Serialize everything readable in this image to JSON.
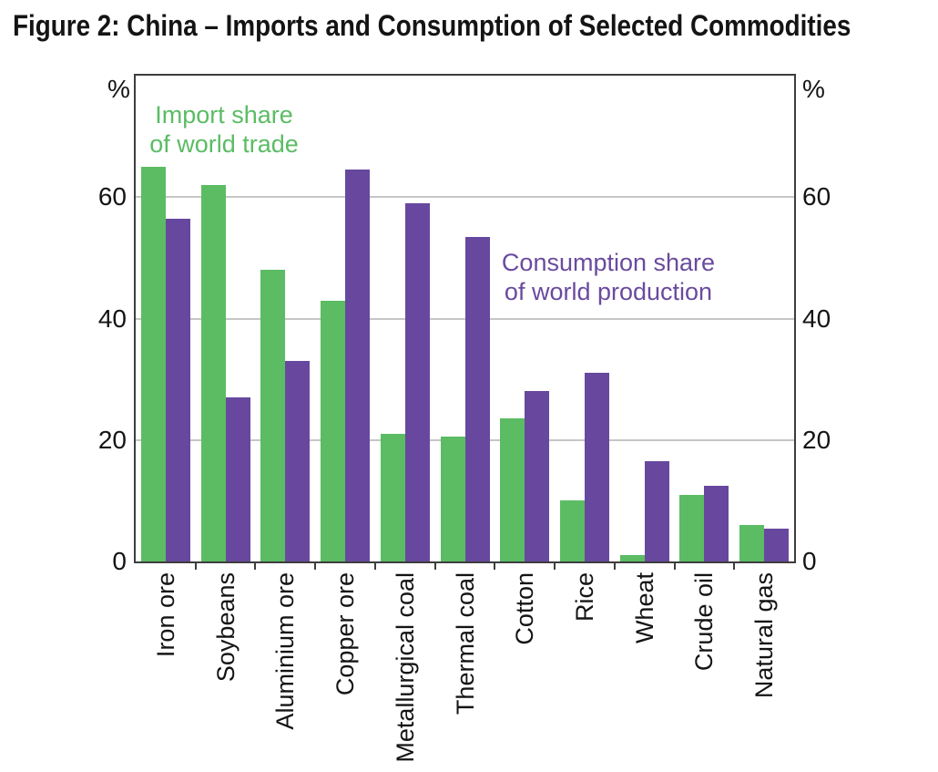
{
  "figure": {
    "title": "Figure 2: China – Imports and Consumption of Selected Commodities"
  },
  "chart_data": {
    "type": "bar",
    "title": "Figure 2: China – Imports and Consumption of Selected Commodities",
    "categories": [
      "Iron ore",
      "Soybeans",
      "Aluminium ore",
      "Copper ore",
      "Metallurgical coal",
      "Thermal coal",
      "Cotton",
      "Rice",
      "Wheat",
      "Crude oil",
      "Natural gas"
    ],
    "series": [
      {
        "name": "Import share of world trade",
        "color": "#5bbc64",
        "values": [
          65,
          62,
          48,
          43,
          21,
          20.5,
          23.5,
          10,
          1,
          11,
          6
        ]
      },
      {
        "name": "Consumption share of world production",
        "color": "#67489e",
        "values": [
          56.5,
          27,
          33,
          64.5,
          59,
          53.5,
          28,
          31,
          16.5,
          12.5,
          5.4
        ]
      }
    ],
    "xlabel": "",
    "ylabel": "%",
    "y_unit_symbol": "%",
    "yticks": [
      0,
      20,
      40,
      60
    ],
    "ylim": [
      0,
      80
    ],
    "grid": true,
    "legend_position": "in-plot annotations",
    "annotations": [
      {
        "id": "import-share-label",
        "lines": [
          "Import share",
          "of world trade"
        ],
        "color": "#5bbc64"
      },
      {
        "id": "consumption-share-label",
        "lines": [
          "Consumption share",
          "of world production"
        ],
        "color": "#6a4a9e"
      }
    ],
    "colors": {
      "import_bar": "#5bbc64",
      "consumption_bar": "#67489e",
      "gridline": "#c6c6c6",
      "axis": "#3d3d3d",
      "text": "#141414"
    }
  }
}
